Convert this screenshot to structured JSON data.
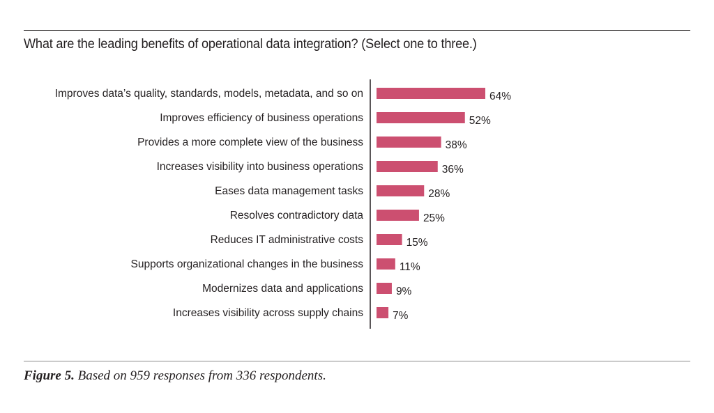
{
  "header": {
    "title": "What are the leading benefits of operational data integration? (Select one to three.)"
  },
  "caption": {
    "figure_label": "Figure 5.",
    "text": " Based on 959 responses from 336 respondents."
  },
  "colors": {
    "bar": "#cc4f70",
    "axis": "#231f20",
    "text": "#231f20"
  },
  "chart_data": {
    "type": "bar",
    "orientation": "horizontal",
    "categories": [
      "Improves data’s quality, standards, models, metadata, and so on",
      "Improves efficiency of business operations",
      "Provides a more complete view of the business",
      "Increases visibility into business operations",
      "Eases data management tasks",
      "Resolves contradictory data",
      "Reduces IT administrative costs",
      "Supports organizational changes in the business",
      "Modernizes data and applications",
      "Increases visibility across supply chains"
    ],
    "values": [
      64,
      52,
      38,
      36,
      28,
      25,
      15,
      11,
      9,
      7
    ],
    "value_labels": [
      "64%",
      "52%",
      "38%",
      "36%",
      "28%",
      "25%",
      "15%",
      "11%",
      "9%",
      "7%"
    ],
    "unit": "%",
    "xlim": [
      0,
      100
    ],
    "grid": false,
    "legend": "none"
  }
}
